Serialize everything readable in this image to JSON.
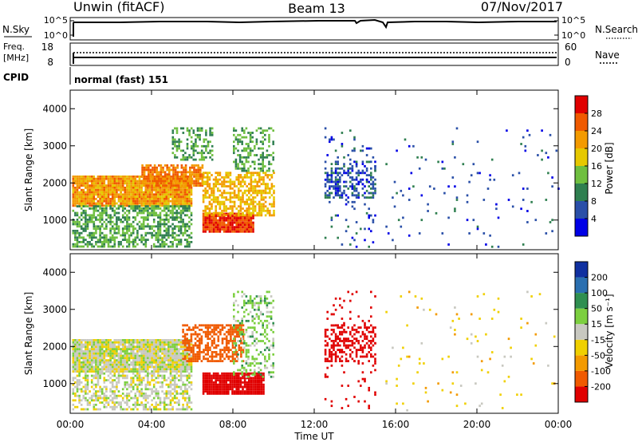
{
  "header": {
    "station": "Unwin (fitACF)",
    "beam": "Beam 13",
    "date": "07/Nov/2017"
  },
  "noise_panel": {
    "left_label": "N.Sky",
    "right_label": "N.Search",
    "left_ticks": [
      "10^5",
      "10^0"
    ],
    "right_ticks": [
      "10^5",
      "10^0"
    ]
  },
  "freq_panel": {
    "left_label_1": "Freq.",
    "left_label_2": "[MHz]",
    "right_label": "Nave",
    "left_ticks": [
      "18",
      "8"
    ],
    "right_ticks": [
      "60",
      "0"
    ]
  },
  "cpid": {
    "label": "CPID",
    "value": "normal (fast) 151"
  },
  "x_axis": {
    "label": "Time UT",
    "ticks": [
      "00:00",
      "04:00",
      "08:00",
      "12:00",
      "16:00",
      "20:00",
      "00:00"
    ]
  },
  "power_colorbar": {
    "label": "Power [dB]",
    "ticks": [
      "4",
      "8",
      "12",
      "16",
      "20",
      "24",
      "28"
    ],
    "colors": [
      "#0000e6",
      "#2a4fa8",
      "#2f7f50",
      "#6fbf3f",
      "#e6c800",
      "#f39a00",
      "#f05a00",
      "#e00000"
    ]
  },
  "velocity_colorbar": {
    "label": "Velocity [m s⁻¹]",
    "ticks": [
      "200",
      "100",
      "50",
      "15",
      "-15",
      "-50",
      "-100",
      "-200"
    ],
    "colors": [
      "#1030a0",
      "#2a6fb0",
      "#2f8f50",
      "#7ccf3f",
      "#c8c8c0",
      "#f0d000",
      "#f39a00",
      "#f05a00",
      "#e00000"
    ]
  },
  "chart_data": [
    {
      "type": "heatmap",
      "title": "Power",
      "ylabel": "Slant Range [km]",
      "xlabel": "Time UT",
      "ylim": [
        200,
        4500
      ],
      "xlim_hours": [
        0,
        24
      ],
      "y_ticks": [
        1000,
        2000,
        3000,
        4000
      ],
      "regions": [
        {
          "t0": 0.1,
          "t1": 6.0,
          "r0": 1400,
          "r1": 2200,
          "value_db": 22,
          "density": 0.95
        },
        {
          "t0": 0.1,
          "t1": 6.0,
          "r0": 300,
          "r1": 1400,
          "value_db": 12,
          "density": 0.6
        },
        {
          "t0": 3.5,
          "t1": 6.5,
          "r0": 1900,
          "r1": 2500,
          "value_db": 24,
          "density": 0.8
        },
        {
          "t0": 5.0,
          "t1": 7.0,
          "r0": 2600,
          "r1": 3500,
          "value_db": 12,
          "density": 0.4
        },
        {
          "t0": 6.5,
          "t1": 9.0,
          "r0": 700,
          "r1": 1200,
          "value_db": 28,
          "density": 0.95
        },
        {
          "t0": 6.5,
          "t1": 10.0,
          "r0": 1100,
          "r1": 2300,
          "value_db": 20,
          "density": 0.6
        },
        {
          "t0": 8.0,
          "t1": 10.0,
          "r0": 2300,
          "r1": 3500,
          "value_db": 12,
          "density": 0.35
        },
        {
          "t0": 12.5,
          "t1": 15.0,
          "r0": 1600,
          "r1": 2600,
          "value_db": 6,
          "density": 0.35
        },
        {
          "t0": 12.5,
          "t1": 15.0,
          "r0": 300,
          "r1": 3500,
          "value_db": 6,
          "density": 0.08
        },
        {
          "t0": 15.5,
          "t1": 24.0,
          "r0": 300,
          "r1": 3500,
          "value_db": 6,
          "density": 0.02
        }
      ]
    },
    {
      "type": "heatmap",
      "title": "Velocity",
      "ylabel": "Slant Range [km]",
      "xlabel": "Time UT",
      "ylim": [
        200,
        4500
      ],
      "xlim_hours": [
        0,
        24
      ],
      "y_ticks": [
        1000,
        2000,
        3000,
        4000
      ],
      "regions": [
        {
          "t0": 0.1,
          "t1": 6.0,
          "r0": 1300,
          "r1": 2200,
          "value_ms": 0,
          "density": 0.95
        },
        {
          "t0": 0.1,
          "t1": 6.0,
          "r0": 300,
          "r1": 1300,
          "value_ms": 0,
          "density": 0.5
        },
        {
          "t0": 5.5,
          "t1": 8.5,
          "r0": 1600,
          "r1": 2600,
          "value_ms": -150,
          "density": 0.6
        },
        {
          "t0": 6.5,
          "t1": 9.5,
          "r0": 700,
          "r1": 1300,
          "value_ms": -250,
          "density": 0.95
        },
        {
          "t0": 8.0,
          "t1": 10.0,
          "r0": 1200,
          "r1": 3500,
          "value_ms": 30,
          "density": 0.35
        },
        {
          "t0": 12.5,
          "t1": 15.0,
          "r0": 1600,
          "r1": 2600,
          "value_ms": -250,
          "density": 0.4
        },
        {
          "t0": 12.5,
          "t1": 15.0,
          "r0": 300,
          "r1": 3500,
          "value_ms": -250,
          "density": 0.06
        },
        {
          "t0": 15.5,
          "t1": 24.0,
          "r0": 300,
          "r1": 3500,
          "value_ms": -30,
          "density": 0.02
        }
      ]
    }
  ]
}
